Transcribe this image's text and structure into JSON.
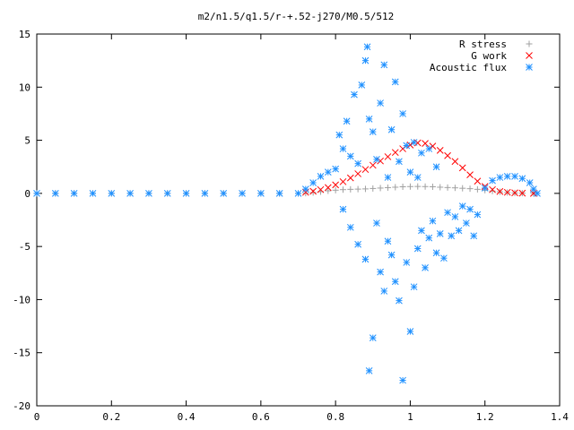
{
  "chart_data": {
    "type": "scatter",
    "title": "m2/n1.5/q1.5/r-+.52-j270/M0.5/512",
    "xlabel": "",
    "ylabel": "",
    "xlim": [
      0,
      1.4
    ],
    "ylim": [
      -20,
      15
    ],
    "xticks": [
      "0",
      "0.2",
      "0.4",
      "0.6",
      "0.8",
      "1",
      "1.2",
      "1.4"
    ],
    "yticks": [
      "15",
      "10",
      "5",
      "0",
      "-5",
      "-10",
      "-15",
      "-20"
    ],
    "grid": false,
    "legend_position": "top-right",
    "series": [
      {
        "name": "R stress",
        "marker": "plus",
        "color": "#a0a0a0",
        "points": [
          [
            0.0,
            0
          ],
          [
            0.05,
            0
          ],
          [
            0.1,
            0
          ],
          [
            0.15,
            0
          ],
          [
            0.2,
            0
          ],
          [
            0.25,
            0
          ],
          [
            0.3,
            0
          ],
          [
            0.35,
            0
          ],
          [
            0.4,
            0
          ],
          [
            0.45,
            0
          ],
          [
            0.5,
            0
          ],
          [
            0.55,
            0
          ],
          [
            0.6,
            0
          ],
          [
            0.65,
            0
          ],
          [
            0.7,
            0
          ],
          [
            0.72,
            0.02
          ],
          [
            0.74,
            0.08
          ],
          [
            0.76,
            0.16
          ],
          [
            0.78,
            0.24
          ],
          [
            0.8,
            0.3
          ],
          [
            0.82,
            0.35
          ],
          [
            0.84,
            0.38
          ],
          [
            0.86,
            0.4
          ],
          [
            0.88,
            0.42
          ],
          [
            0.9,
            0.46
          ],
          [
            0.92,
            0.5
          ],
          [
            0.94,
            0.54
          ],
          [
            0.96,
            0.58
          ],
          [
            0.98,
            0.62
          ],
          [
            1.0,
            0.64
          ],
          [
            1.02,
            0.65
          ],
          [
            1.04,
            0.64
          ],
          [
            1.06,
            0.62
          ],
          [
            1.08,
            0.58
          ],
          [
            1.1,
            0.55
          ],
          [
            1.12,
            0.52
          ],
          [
            1.14,
            0.48
          ],
          [
            1.16,
            0.44
          ],
          [
            1.18,
            0.38
          ],
          [
            1.2,
            0.3
          ],
          [
            1.22,
            0.22
          ],
          [
            1.24,
            0.15
          ],
          [
            1.26,
            0.08
          ],
          [
            1.28,
            0.04
          ],
          [
            1.3,
            0.02
          ],
          [
            1.33,
            0
          ]
        ]
      },
      {
        "name": "G work",
        "marker": "cross",
        "color": "#ff0000",
        "points": [
          [
            0.72,
            0.1
          ],
          [
            0.74,
            0.2
          ],
          [
            0.76,
            0.35
          ],
          [
            0.78,
            0.55
          ],
          [
            0.8,
            0.8
          ],
          [
            0.82,
            1.1
          ],
          [
            0.84,
            1.45
          ],
          [
            0.86,
            1.85
          ],
          [
            0.88,
            2.25
          ],
          [
            0.9,
            2.65
          ],
          [
            0.92,
            3.05
          ],
          [
            0.94,
            3.45
          ],
          [
            0.96,
            3.85
          ],
          [
            0.98,
            4.2
          ],
          [
            1.0,
            4.55
          ],
          [
            1.02,
            4.75
          ],
          [
            1.04,
            4.7
          ],
          [
            1.06,
            4.45
          ],
          [
            1.08,
            4.05
          ],
          [
            1.1,
            3.55
          ],
          [
            1.12,
            3.0
          ],
          [
            1.14,
            2.4
          ],
          [
            1.16,
            1.75
          ],
          [
            1.18,
            1.15
          ],
          [
            1.2,
            0.65
          ],
          [
            1.22,
            0.35
          ],
          [
            1.24,
            0.18
          ],
          [
            1.26,
            0.1
          ],
          [
            1.28,
            0.05
          ],
          [
            1.3,
            0.02
          ],
          [
            1.33,
            0
          ]
        ]
      },
      {
        "name": "Acoustic flux",
        "marker": "star",
        "color": "#1e90ff",
        "points": [
          [
            0.0,
            0
          ],
          [
            0.05,
            0
          ],
          [
            0.1,
            0
          ],
          [
            0.15,
            0
          ],
          [
            0.2,
            0
          ],
          [
            0.25,
            0
          ],
          [
            0.3,
            0
          ],
          [
            0.35,
            0
          ],
          [
            0.4,
            0
          ],
          [
            0.45,
            0
          ],
          [
            0.5,
            0
          ],
          [
            0.55,
            0
          ],
          [
            0.6,
            0
          ],
          [
            0.65,
            0
          ],
          [
            0.7,
            0
          ],
          [
            0.72,
            0.4
          ],
          [
            0.74,
            1.0
          ],
          [
            0.76,
            1.6
          ],
          [
            0.78,
            2.0
          ],
          [
            0.8,
            2.3
          ],
          [
            0.81,
            5.5
          ],
          [
            0.82,
            4.2
          ],
          [
            0.83,
            6.8
          ],
          [
            0.84,
            3.5
          ],
          [
            0.85,
            9.3
          ],
          [
            0.86,
            2.8
          ],
          [
            0.87,
            10.2
          ],
          [
            0.88,
            12.5
          ],
          [
            0.885,
            13.8
          ],
          [
            0.89,
            7.0
          ],
          [
            0.9,
            5.8
          ],
          [
            0.91,
            3.2
          ],
          [
            0.92,
            8.5
          ],
          [
            0.93,
            12.1
          ],
          [
            0.94,
            1.5
          ],
          [
            0.95,
            6.0
          ],
          [
            0.96,
            10.5
          ],
          [
            0.97,
            3.0
          ],
          [
            0.98,
            7.5
          ],
          [
            0.99,
            4.5
          ],
          [
            1.0,
            2.0
          ],
          [
            1.01,
            4.8
          ],
          [
            1.02,
            1.5
          ],
          [
            1.03,
            3.8
          ],
          [
            1.05,
            4.2
          ],
          [
            1.07,
            2.5
          ],
          [
            0.82,
            -1.5
          ],
          [
            0.84,
            -3.2
          ],
          [
            0.86,
            -4.8
          ],
          [
            0.88,
            -6.2
          ],
          [
            0.89,
            -16.7
          ],
          [
            0.9,
            -13.6
          ],
          [
            0.91,
            -2.8
          ],
          [
            0.92,
            -7.4
          ],
          [
            0.93,
            -9.2
          ],
          [
            0.94,
            -4.5
          ],
          [
            0.95,
            -5.8
          ],
          [
            0.96,
            -8.3
          ],
          [
            0.97,
            -10.1
          ],
          [
            0.98,
            -17.6
          ],
          [
            0.99,
            -6.5
          ],
          [
            1.0,
            -13.0
          ],
          [
            1.01,
            -8.8
          ],
          [
            1.02,
            -5.2
          ],
          [
            1.03,
            -3.5
          ],
          [
            1.04,
            -7.0
          ],
          [
            1.05,
            -4.2
          ],
          [
            1.06,
            -2.6
          ],
          [
            1.07,
            -5.6
          ],
          [
            1.08,
            -3.8
          ],
          [
            1.09,
            -6.1
          ],
          [
            1.1,
            -1.8
          ],
          [
            1.11,
            -4.0
          ],
          [
            1.12,
            -2.2
          ],
          [
            1.13,
            -3.5
          ],
          [
            1.14,
            -1.2
          ],
          [
            1.15,
            -2.8
          ],
          [
            1.16,
            -1.5
          ],
          [
            1.17,
            -4.0
          ],
          [
            1.18,
            -2.0
          ],
          [
            1.2,
            0.5
          ],
          [
            1.22,
            1.2
          ],
          [
            1.24,
            1.5
          ],
          [
            1.26,
            1.6
          ],
          [
            1.28,
            1.6
          ],
          [
            1.3,
            1.4
          ],
          [
            1.32,
            1.0
          ],
          [
            1.33,
            0.4
          ],
          [
            1.34,
            0
          ]
        ]
      }
    ]
  }
}
